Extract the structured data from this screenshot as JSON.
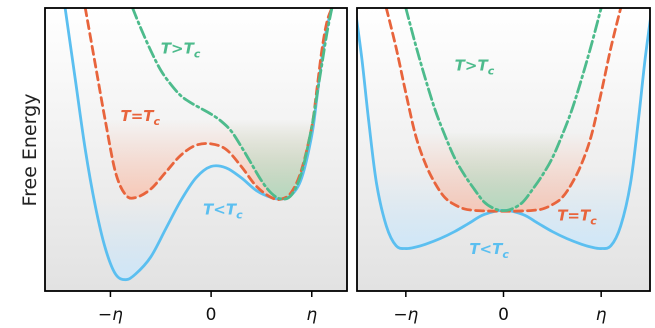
{
  "figure": {
    "ylabel": "Free Energy"
  },
  "chart_data": [
    {
      "type": "line",
      "panel": "left",
      "title": "",
      "xlabel": "",
      "ylabel": "Free Energy",
      "x_ticks": [
        {
          "value": -1,
          "label": "−η"
        },
        {
          "value": 0,
          "label": "0"
        },
        {
          "value": 1,
          "label": "η"
        }
      ],
      "xlim": [
        -1.65,
        1.35
      ],
      "ylim": [
        0,
        1
      ],
      "grid": false,
      "legend": "none",
      "series": [
        {
          "name": "T<T",
          "name_sub": "c",
          "color": "#5bbff0",
          "style": "solid",
          "fill": "#cbe7fb",
          "label_at": [
            -0.08,
            0.27
          ],
          "x": [
            -1.45,
            -1.35,
            -1.25,
            -1.15,
            -1.05,
            -0.95,
            -0.85,
            -0.75,
            -0.6,
            -0.45,
            -0.3,
            -0.15,
            0.0,
            0.15,
            0.3,
            0.45,
            0.6,
            0.7,
            0.8,
            0.9,
            1.0,
            1.05,
            1.1,
            1.15,
            1.2
          ],
          "y": [
            1.0,
            0.75,
            0.5,
            0.3,
            0.15,
            0.06,
            0.04,
            0.06,
            0.12,
            0.22,
            0.32,
            0.4,
            0.44,
            0.435,
            0.4,
            0.355,
            0.33,
            0.325,
            0.34,
            0.4,
            0.55,
            0.68,
            0.82,
            0.93,
            1.0
          ]
        },
        {
          "name": "T=T",
          "name_sub": "c",
          "color": "#e8643c",
          "style": "dashed",
          "fill": "#f9c2ae",
          "label_at": [
            -0.9,
            0.6
          ],
          "x": [
            -1.25,
            -1.15,
            -1.05,
            -0.95,
            -0.85,
            -0.75,
            -0.6,
            -0.45,
            -0.3,
            -0.15,
            0.0,
            0.15,
            0.3,
            0.45,
            0.6,
            0.7,
            0.8,
            0.9,
            1.0,
            1.05,
            1.1,
            1.15,
            1.2
          ],
          "y": [
            1.0,
            0.8,
            0.6,
            0.42,
            0.34,
            0.33,
            0.36,
            0.42,
            0.48,
            0.515,
            0.52,
            0.5,
            0.44,
            0.37,
            0.33,
            0.325,
            0.35,
            0.43,
            0.58,
            0.71,
            0.85,
            0.95,
            1.0
          ]
        },
        {
          "name": "T>T",
          "name_sub": "c",
          "color": "#4dbb8c",
          "style": "dashdot",
          "fill": "#a8dcc1",
          "label_at": [
            -0.5,
            0.84
          ],
          "x": [
            -0.78,
            -0.7,
            -0.6,
            -0.5,
            -0.4,
            -0.3,
            -0.2,
            -0.1,
            0.0,
            0.1,
            0.2,
            0.3,
            0.4,
            0.5,
            0.6,
            0.7,
            0.8,
            0.9,
            1.0,
            1.05,
            1.1,
            1.15,
            1.2
          ],
          "y": [
            1.0,
            0.93,
            0.85,
            0.78,
            0.73,
            0.69,
            0.665,
            0.645,
            0.625,
            0.6,
            0.565,
            0.51,
            0.45,
            0.39,
            0.345,
            0.325,
            0.34,
            0.42,
            0.58,
            0.69,
            0.8,
            0.91,
            1.0
          ]
        }
      ]
    },
    {
      "type": "line",
      "panel": "right",
      "title": "",
      "xlabel": "",
      "ylabel": "",
      "x_ticks": [
        {
          "value": -1,
          "label": "−η"
        },
        {
          "value": 0,
          "label": "0"
        },
        {
          "value": 1,
          "label": "η"
        }
      ],
      "xlim": [
        -1.5,
        1.5
      ],
      "ylim": [
        0,
        1
      ],
      "grid": false,
      "legend": "none",
      "series": [
        {
          "name": "T<T",
          "name_sub": "c",
          "color": "#5bbff0",
          "style": "solid",
          "fill": "#cbe7fb",
          "label_at": [
            -0.35,
            0.13
          ],
          "x": [
            -1.52,
            -1.45,
            -1.38,
            -1.3,
            -1.2,
            -1.1,
            -1.0,
            -0.9,
            -0.8,
            -0.65,
            -0.5,
            -0.35,
            -0.2,
            0.0,
            0.2,
            0.35,
            0.5,
            0.65,
            0.8,
            0.9,
            1.0,
            1.1,
            1.2,
            1.3,
            1.38,
            1.45,
            1.52
          ],
          "y": [
            1.0,
            0.82,
            0.6,
            0.38,
            0.23,
            0.16,
            0.15,
            0.155,
            0.165,
            0.185,
            0.21,
            0.24,
            0.27,
            0.285,
            0.27,
            0.24,
            0.21,
            0.185,
            0.165,
            0.155,
            0.15,
            0.16,
            0.23,
            0.38,
            0.6,
            0.82,
            1.0
          ]
        },
        {
          "name": "T=T",
          "name_sub": "c",
          "color": "#e8643c",
          "style": "dashed",
          "fill": "#f9c2ae",
          "label_at": [
            0.55,
            0.25
          ],
          "x": [
            -1.2,
            -1.1,
            -1.0,
            -0.9,
            -0.8,
            -0.7,
            -0.6,
            -0.5,
            -0.4,
            -0.3,
            -0.2,
            -0.1,
            0.0,
            0.1,
            0.2,
            0.3,
            0.4,
            0.5,
            0.6,
            0.7,
            0.8,
            0.9,
            1.0,
            1.1,
            1.2
          ],
          "y": [
            1.0,
            0.86,
            0.7,
            0.55,
            0.45,
            0.38,
            0.33,
            0.305,
            0.29,
            0.285,
            0.283,
            0.282,
            0.282,
            0.282,
            0.283,
            0.285,
            0.29,
            0.305,
            0.33,
            0.38,
            0.45,
            0.55,
            0.7,
            0.86,
            1.0
          ]
        },
        {
          "name": "T>T",
          "name_sub": "c",
          "color": "#4dbb8c",
          "style": "dashdot",
          "fill": "#a8dcc1",
          "label_at": [
            -0.5,
            0.78
          ],
          "x": [
            -1.0,
            -0.9,
            -0.8,
            -0.7,
            -0.6,
            -0.5,
            -0.4,
            -0.3,
            -0.2,
            -0.1,
            0.0,
            0.1,
            0.2,
            0.3,
            0.4,
            0.5,
            0.6,
            0.7,
            0.8,
            0.9,
            1.0
          ],
          "y": [
            1.0,
            0.87,
            0.75,
            0.64,
            0.55,
            0.47,
            0.41,
            0.36,
            0.315,
            0.292,
            0.284,
            0.292,
            0.315,
            0.36,
            0.41,
            0.47,
            0.55,
            0.64,
            0.75,
            0.87,
            1.0
          ]
        }
      ]
    }
  ]
}
